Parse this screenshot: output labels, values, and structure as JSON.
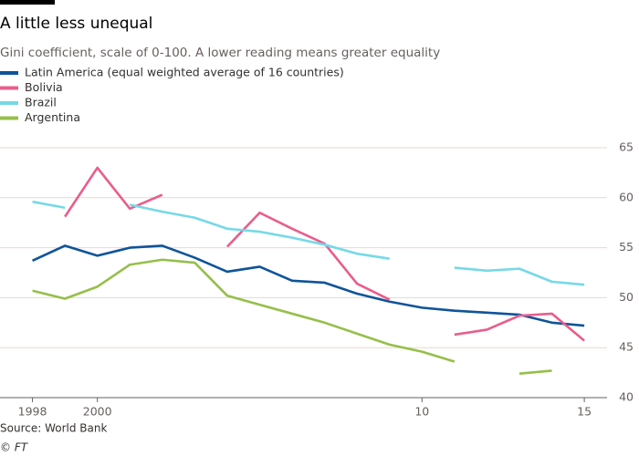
{
  "chart_data": {
    "type": "line",
    "title": "A little less unequal",
    "subtitle": "Gini coefficient, scale of 0-100. A lower reading means greater equality",
    "source": "Source: World Bank",
    "credit": "© FT",
    "x": [
      1998,
      1999,
      2000,
      2001,
      2002,
      2003,
      2004,
      2005,
      2006,
      2007,
      2008,
      2009,
      2010,
      2011,
      2012,
      2013,
      2014,
      2015
    ],
    "series": [
      {
        "name": "Latin America (equal weighted average of 16 countries)",
        "color": "#0f5499",
        "values": [
          53.7,
          55.2,
          54.2,
          55.0,
          55.2,
          54.0,
          52.6,
          53.1,
          51.7,
          51.5,
          50.4,
          49.6,
          49.0,
          48.7,
          48.5,
          48.3,
          47.5,
          47.2
        ]
      },
      {
        "name": "Bolivia",
        "color": "#e95d8c",
        "values": [
          null,
          58.1,
          63.0,
          58.9,
          60.3,
          null,
          55.1,
          58.5,
          56.9,
          55.4,
          51.4,
          49.8,
          null,
          46.3,
          46.8,
          48.2,
          48.4,
          45.7
        ]
      },
      {
        "name": "Brazil",
        "color": "#76d9e6",
        "values": [
          59.6,
          59.0,
          null,
          59.3,
          58.6,
          58.0,
          56.9,
          56.6,
          56.0,
          55.3,
          54.4,
          53.9,
          null,
          53.0,
          52.7,
          52.9,
          51.6,
          51.3
        ]
      },
      {
        "name": "Argentina",
        "color": "#96bf4a",
        "values": [
          50.7,
          49.9,
          51.1,
          53.3,
          53.8,
          53.5,
          50.2,
          49.3,
          48.4,
          47.5,
          46.4,
          45.3,
          44.6,
          43.6,
          null,
          42.4,
          42.7,
          null
        ]
      }
    ],
    "xlim": [
      1997,
      2015.7
    ],
    "xticks": [
      1998,
      2000,
      {
        "value": 2010,
        "label": "10"
      },
      {
        "value": 2015,
        "label": "15"
      }
    ],
    "ylim": [
      40,
      65
    ],
    "yticks": [
      40,
      45,
      50,
      55,
      60,
      65
    ],
    "grid": true
  }
}
